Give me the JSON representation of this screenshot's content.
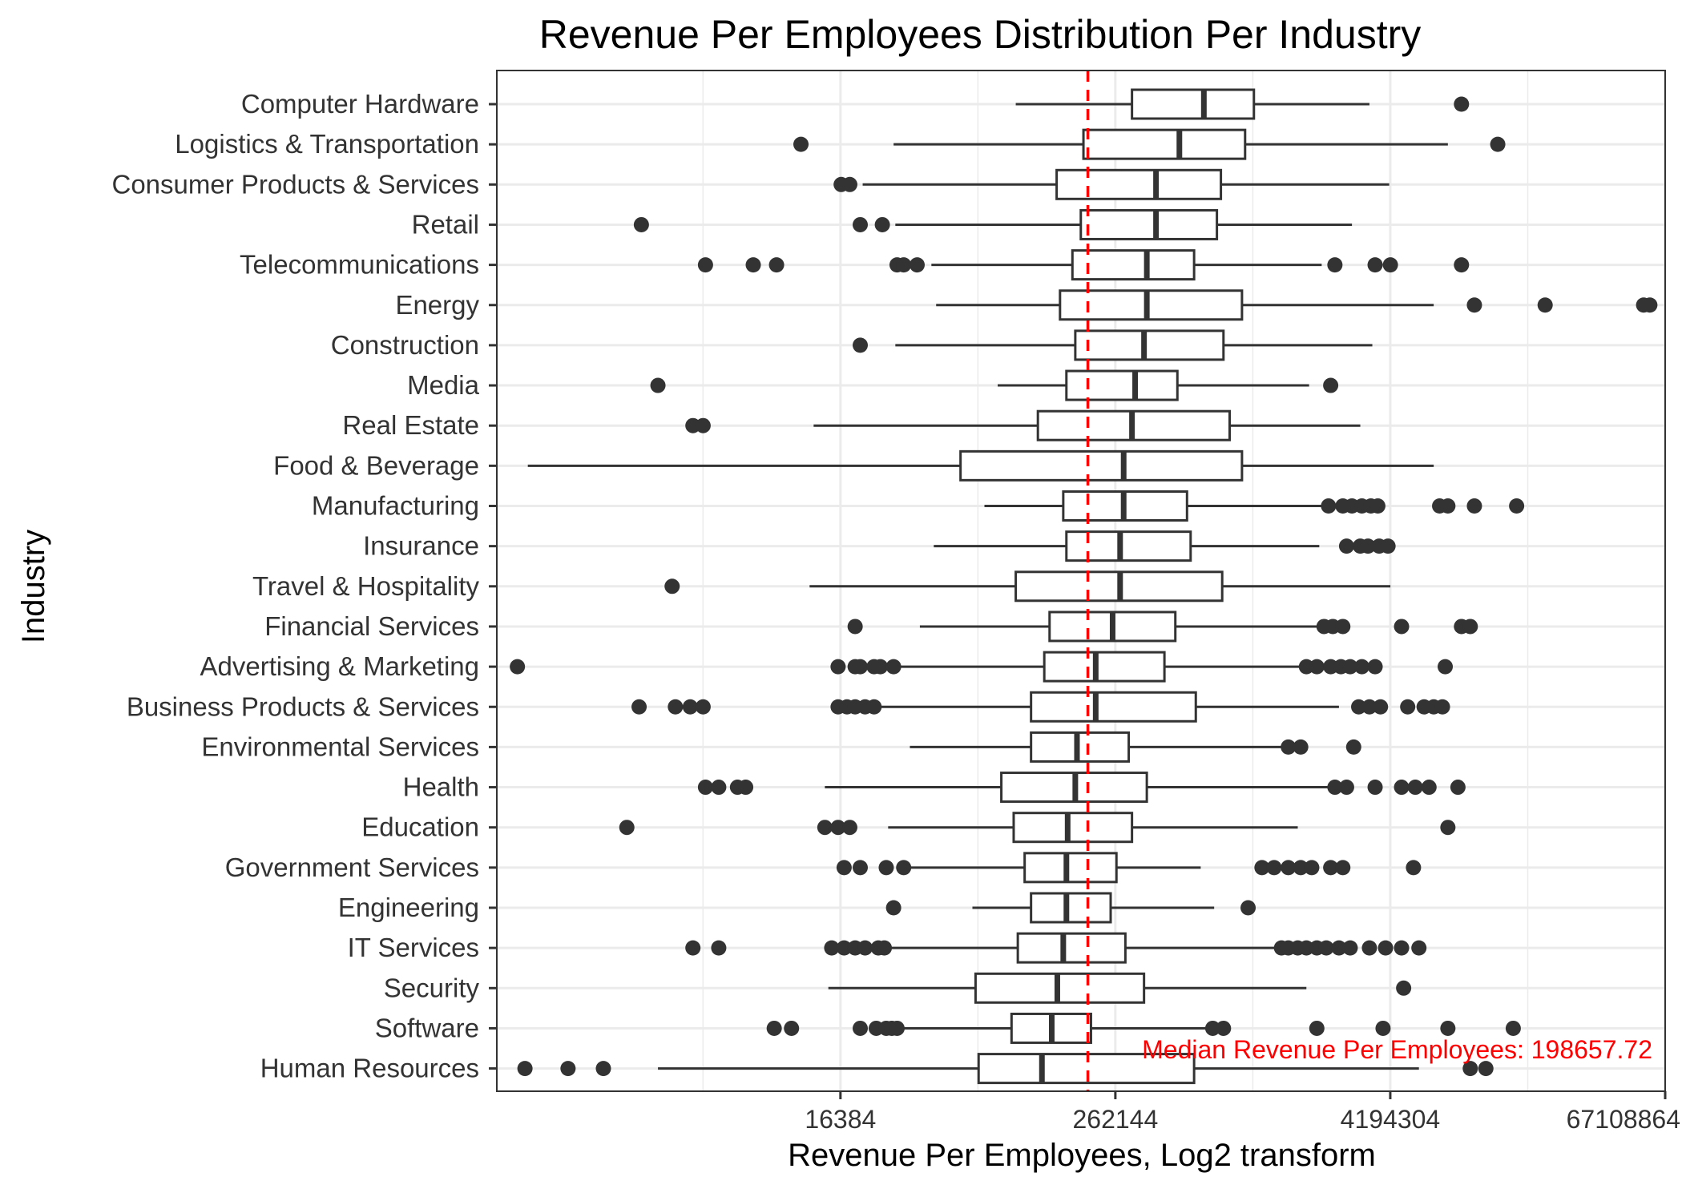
{
  "chart_data": {
    "type": "boxplot",
    "orientation": "horizontal",
    "title": "Revenue Per Employees Distribution Per Industry",
    "xlabel": "Revenue Per Employees, Log2 transform",
    "ylabel": "Industry",
    "x_scale": "log2",
    "xlim": [
      512,
      67108864
    ],
    "x_ticks": [
      16384,
      262144,
      4194304,
      67108864
    ],
    "x_tick_labels": [
      "16384",
      "262144",
      "4194304",
      "67108864"
    ],
    "grid": true,
    "median_line": {
      "value": 198657.72,
      "color": "#ff0000",
      "style": "dashed"
    },
    "annotation": "Median Revenue Per Employees:  198657.72",
    "categories": [
      {
        "name": "Computer Hardware",
        "whisker_low": 96000,
        "q1": 310000,
        "median": 640000,
        "q3": 1060000,
        "whisker_high": 3400000,
        "outliers": [
          8600000
        ]
      },
      {
        "name": "Logistics & Transportation",
        "whisker_low": 28000,
        "q1": 190000,
        "median": 500000,
        "q3": 970000,
        "whisker_high": 7500000,
        "outliers": [
          11000,
          12400000
        ]
      },
      {
        "name": "Consumer Products & Services",
        "whisker_low": 20500,
        "q1": 145000,
        "median": 395000,
        "q3": 760000,
        "whisker_high": 4150000,
        "outliers": [
          16500,
          18000
        ]
      },
      {
        "name": "Retail",
        "whisker_low": 28500,
        "q1": 185000,
        "median": 395000,
        "q3": 730000,
        "whisker_high": 2850000,
        "outliers": [
          2200,
          20000,
          25000
        ]
      },
      {
        "name": "Telecommunications",
        "whisker_low": 41000,
        "q1": 170000,
        "median": 360000,
        "q3": 580000,
        "whisker_high": 2100000,
        "outliers": [
          4200,
          6800,
          8600,
          29000,
          31000,
          35500,
          2400000,
          3600000,
          4200000,
          8600000
        ]
      },
      {
        "name": "Energy",
        "whisker_low": 43000,
        "q1": 150000,
        "median": 360000,
        "q3": 940000,
        "whisker_high": 6500000,
        "outliers": [
          9800000,
          20000000,
          54000000,
          57500000
        ]
      },
      {
        "name": "Construction",
        "whisker_low": 28500,
        "q1": 175000,
        "median": 350000,
        "q3": 780000,
        "whisker_high": 3500000,
        "outliers": [
          20000
        ]
      },
      {
        "name": "Media",
        "whisker_low": 80000,
        "q1": 160000,
        "median": 320000,
        "q3": 490000,
        "whisker_high": 1850000,
        "outliers": [
          2600,
          2300000
        ]
      },
      {
        "name": "Real Estate",
        "whisker_low": 12500,
        "q1": 120000,
        "median": 310000,
        "q3": 830000,
        "whisker_high": 3100000,
        "outliers": [
          3700,
          4100
        ]
      },
      {
        "name": "Food & Beverage",
        "whisker_low": 700,
        "q1": 55000,
        "median": 285000,
        "q3": 940000,
        "whisker_high": 6500000,
        "outliers": []
      },
      {
        "name": "Manufacturing",
        "whisker_low": 70000,
        "q1": 155000,
        "median": 285000,
        "q3": 540000,
        "whisker_high": 2350000,
        "outliers": [
          2250000,
          2600000,
          2850000,
          3150000,
          3450000,
          3700000,
          6900000,
          7500000,
          9800000,
          15000000
        ]
      },
      {
        "name": "Insurance",
        "whisker_low": 42000,
        "q1": 160000,
        "median": 275000,
        "q3": 560000,
        "whisker_high": 2050000,
        "outliers": [
          2700000,
          3100000,
          3350000,
          3750000,
          4100000
        ]
      },
      {
        "name": "Travel & Hospitality",
        "whisker_low": 12000,
        "q1": 96000,
        "median": 275000,
        "q3": 770000,
        "whisker_high": 4200000,
        "outliers": [
          3000
        ]
      },
      {
        "name": "Financial Services",
        "whisker_low": 36500,
        "q1": 135000,
        "median": 255000,
        "q3": 480000,
        "whisker_high": 2050000,
        "outliers": [
          19000,
          2150000,
          2350000,
          2600000,
          4700000,
          8600000,
          9400000
        ]
      },
      {
        "name": "Advertising & Marketing",
        "whisker_low": 23000,
        "q1": 128000,
        "median": 215000,
        "q3": 430000,
        "whisker_high": 1700000,
        "outliers": [
          630,
          16000,
          19000,
          20000,
          23000,
          24500,
          28000,
          1800000,
          2000000,
          2300000,
          2550000,
          2800000,
          3150000,
          3600000,
          7300000
        ]
      },
      {
        "name": "Business Products & Services",
        "whisker_low": 20000,
        "q1": 112000,
        "median": 215000,
        "q3": 590000,
        "whisker_high": 2500000,
        "outliers": [
          2150,
          3100,
          3600,
          4100,
          16000,
          17500,
          19000,
          21000,
          23000,
          3050000,
          3400000,
          3800000,
          5000000,
          5900000,
          6500000,
          7100000
        ]
      },
      {
        "name": "Environmental Services",
        "whisker_low": 33000,
        "q1": 112000,
        "median": 178000,
        "q3": 300000,
        "whisker_high": 1450000,
        "outliers": [
          1500000,
          1700000,
          2900000
        ]
      },
      {
        "name": "Health",
        "whisker_low": 14000,
        "q1": 83000,
        "median": 175000,
        "q3": 360000,
        "whisker_high": 2400000,
        "outliers": [
          4200,
          4800,
          5800,
          6300,
          2400000,
          2700000,
          3600000,
          4700000,
          5400000,
          6200000,
          8300000
        ]
      },
      {
        "name": "Education",
        "whisker_low": 26500,
        "q1": 94000,
        "median": 162000,
        "q3": 310000,
        "whisker_high": 1650000,
        "outliers": [
          1900,
          14000,
          16000,
          18000,
          7500000
        ]
      },
      {
        "name": "Government Services",
        "whisker_low": 30000,
        "q1": 105000,
        "median": 160000,
        "q3": 265000,
        "whisker_high": 620000,
        "outliers": [
          17000,
          20000,
          26000,
          31000,
          1150000,
          1300000,
          1500000,
          1700000,
          1900000,
          2300000,
          2600000,
          5300000
        ]
      },
      {
        "name": "Engineering",
        "whisker_low": 62000,
        "q1": 112000,
        "median": 160000,
        "q3": 250000,
        "whisker_high": 710000,
        "outliers": [
          28000,
          1000000
        ]
      },
      {
        "name": "IT Services",
        "whisker_low": 25000,
        "q1": 98000,
        "median": 155000,
        "q3": 290000,
        "whisker_high": 1450000,
        "outliers": [
          3700,
          4800,
          15000,
          17000,
          19000,
          21000,
          24000,
          25500,
          1400000,
          1500000,
          1650000,
          1800000,
          2000000,
          2200000,
          2500000,
          2800000,
          3400000,
          4000000,
          4700000,
          5600000
        ]
      },
      {
        "name": "Security",
        "whisker_low": 14500,
        "q1": 64000,
        "median": 146000,
        "q3": 350000,
        "whisker_high": 1800000,
        "outliers": [
          4800000
        ]
      },
      {
        "name": "Software",
        "whisker_low": 28500,
        "q1": 92000,
        "median": 138000,
        "q3": 205000,
        "whisker_high": 750000,
        "outliers": [
          8400,
          10000,
          20000,
          23500,
          26000,
          27500,
          29000,
          700000,
          780000,
          2000000,
          3900000,
          7500000,
          14500000
        ]
      },
      {
        "name": "Human Resources",
        "whisker_low": 2600,
        "q1": 66000,
        "median": 125000,
        "q3": 580000,
        "whisker_high": 5600000,
        "outliers": [
          680,
          1050,
          1500,
          9400000,
          11000000
        ]
      }
    ]
  }
}
